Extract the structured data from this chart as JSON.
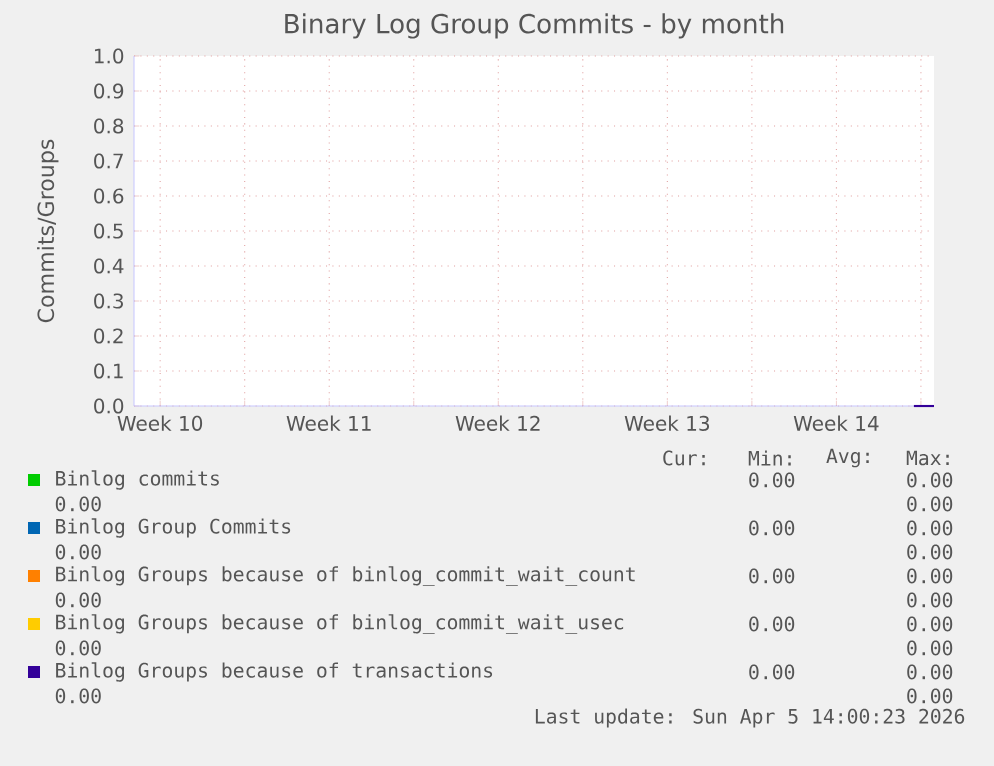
{
  "chart_data": {
    "type": "line",
    "title": "Binary Log Group Commits - by month",
    "ylabel": "Commits/Groups",
    "xlim": [
      "2026-03-04T10:00",
      "2026-04-06T13:00"
    ],
    "xticks": [
      {
        "value": "2026-03-05T12:00",
        "label": "Week 10"
      },
      {
        "value": "2026-03-09",
        "label": null
      },
      {
        "value": "2026-03-12T12:00",
        "label": "Week 11"
      },
      {
        "value": "2026-03-16",
        "label": null
      },
      {
        "value": "2026-03-19T12:00",
        "label": "Week 12"
      },
      {
        "value": "2026-03-23",
        "label": null
      },
      {
        "value": "2026-03-26T12:00",
        "label": "Week 13"
      },
      {
        "value": "2026-03-30",
        "label": null
      },
      {
        "value": "2026-04-02T12:00",
        "label": "Week 14"
      },
      {
        "value": "2026-04-06",
        "label": null
      }
    ],
    "ylim": [
      0,
      1
    ],
    "yticks": [
      {
        "value": 0,
        "label": "0.0"
      },
      {
        "value": 0.1,
        "label": "0.1"
      },
      {
        "value": 0.2,
        "label": "0.2"
      },
      {
        "value": 0.3,
        "label": "0.3"
      },
      {
        "value": 0.4,
        "label": "0.4"
      },
      {
        "value": 0.5,
        "label": "0.5"
      },
      {
        "value": 0.6,
        "label": "0.6"
      },
      {
        "value": 0.7,
        "label": "0.7"
      },
      {
        "value": 0.8,
        "label": "0.8"
      },
      {
        "value": 0.9,
        "label": "0.9"
      },
      {
        "value": 1,
        "label": "1.0"
      }
    ],
    "grid": true,
    "legend": "bottom",
    "x": [
      "2026-04-05T17:00",
      "2026-04-06T13:00"
    ],
    "series": [
      {
        "name": "Binlog commits",
        "color": "#00cc00",
        "values": [
          null,
          null
        ]
      },
      {
        "name": "Binlog Group Commits",
        "color": "#0066b3",
        "values": [
          null,
          null
        ]
      },
      {
        "name": "Binlog Groups because of binlog_commit_wait_count",
        "color": "#ff8000",
        "values": [
          null,
          null
        ]
      },
      {
        "name": "Binlog Groups because of binlog_commit_wait_usec",
        "color": "#ffcc00",
        "values": [
          null,
          null
        ]
      },
      {
        "name": "Binlog Groups because of transactions",
        "color": "#330099",
        "values": [
          0,
          0
        ]
      }
    ],
    "annotations": [
      "Cur:",
      "Min:",
      "Avg:",
      "Max:",
      "0.00",
      "0.00",
      "0.00",
      "0.00",
      "0.00",
      "0.00",
      "0.00",
      "0.00",
      "0.00",
      "0.00",
      "0.00",
      "0.00",
      "0.00",
      "0.00",
      "0.00",
      "0.00",
      "0.00",
      "0.00",
      "0.00",
      "0.00",
      "Last update: Sun Apr  5 14:00:23 2026"
    ]
  }
}
